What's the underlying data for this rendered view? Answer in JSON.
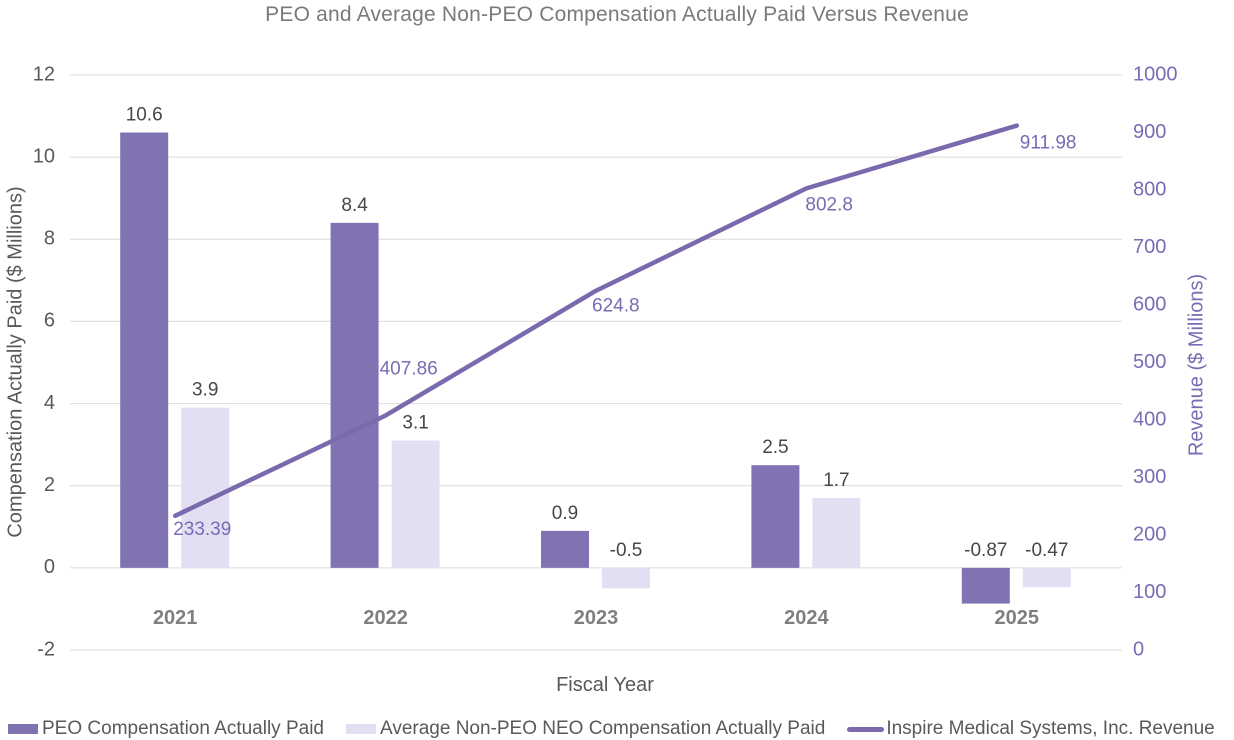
{
  "chart_data": {
    "type": "bar+line combo",
    "title": "PEO and Average Non-PEO Compensation Actually Paid Versus Revenue",
    "xlabel": "Fiscal Year",
    "categories": [
      "2021",
      "2022",
      "2023",
      "2024",
      "2025"
    ],
    "series": [
      {
        "name": "PEO Compensation Actually Paid",
        "type": "bar",
        "axis": "left",
        "values": [
          10.6,
          8.4,
          0.9,
          2.5,
          -0.87
        ],
        "value_labels": [
          "10.6",
          "8.4",
          "0.9",
          "2.5",
          "-0.87"
        ],
        "color": "#8173b2"
      },
      {
        "name": "Average Non-PEO NEO Compensation Actually Paid",
        "type": "bar",
        "axis": "left",
        "values": [
          3.9,
          3.1,
          -0.5,
          1.7,
          -0.47
        ],
        "value_labels": [
          "3.9",
          "3.1",
          "-0.5",
          "1.7",
          "-0.47"
        ],
        "color": "#e3dff2"
      },
      {
        "name": "Inspire Medical Systems, Inc. Revenue",
        "type": "line",
        "axis": "right",
        "values": [
          233.39,
          407.86,
          624.8,
          802.8,
          911.98
        ],
        "value_labels": [
          "233.39",
          "407.86",
          "624.8",
          "802.8",
          "911.98"
        ],
        "color": "#7a69ac"
      }
    ],
    "left_axis": {
      "label": "Compensation Actually Paid ($ Millions)",
      "min": -2,
      "max": 12,
      "step": 2,
      "tick_labels": [
        "-2",
        "0",
        "2",
        "4",
        "6",
        "8",
        "10",
        "12"
      ]
    },
    "right_axis": {
      "label": "Revenue ($ Millions)",
      "min": 0,
      "max": 1000,
      "step": 100,
      "tick_labels": [
        "0",
        "100",
        "200",
        "300",
        "400",
        "500",
        "600",
        "700",
        "800",
        "900",
        "1000"
      ]
    },
    "grid": true,
    "legend_position": "bottom"
  },
  "colors": {
    "peo_bar": "#8173b2",
    "non_peo_bar": "#e3dff2",
    "revenue_line": "#7a69ac",
    "revenue_text": "#7b6ab4",
    "title_text": "#7a7a7a",
    "axis_text": "#595959",
    "year_text": "#7f7f7f",
    "bar_label_text": "#474747",
    "gridline": "#dcdcdc",
    "background": "#ffffff"
  }
}
